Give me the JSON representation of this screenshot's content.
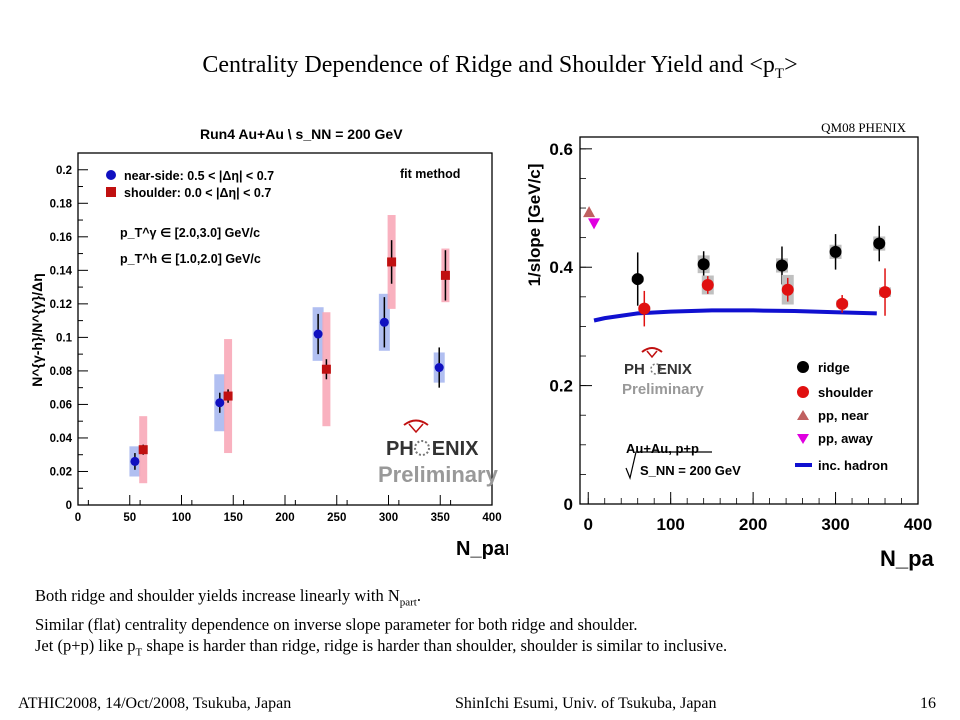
{
  "slide": {
    "title_main": "Centrality Dependence of Ridge and Shoulder Yield and <p",
    "title_sub": "T",
    "title_end": ">",
    "tag": "QM08 PHENIX",
    "notes": [
      {
        "pre": "Both ridge and shoulder yields increase linearly with N",
        "sub": "part",
        "post": "."
      },
      {
        "pre": "Similar (flat) centrality dependence on inverse slope parameter for both ridge and shoulder.",
        "sub": "",
        "post": ""
      },
      {
        "pre": "Jet (p+p) like p",
        "sub": "T",
        "post": " shape is harder than ridge, ridge is harder than shoulder, shoulder is similar to inclusive."
      }
    ],
    "footer_left": "ATHIC2008, 14/Oct/2008, Tsukuba, Japan",
    "footer_center": "ShinIchi Esumi, Univ. of Tsukuba, Japan",
    "page_number": "16"
  },
  "logo": {
    "text_ph": "PH",
    "text_enix": "ENIX",
    "text_prelim": "Preliminary"
  },
  "chart_data": [
    {
      "type": "scatter",
      "title": "Run4 Au+Au \\ s_NN = 200 GeV",
      "corner_label": "fit method",
      "xlabel": "N_part",
      "ylabel": "N^{γ-h}/N^{γ}/Δη",
      "xlim": [
        0,
        400
      ],
      "ylim": [
        0,
        0.21
      ],
      "xticks": [
        "0",
        "50",
        "100",
        "150",
        "200",
        "250",
        "300",
        "350",
        "400"
      ],
      "yticks": [
        "0",
        "0.02",
        "0.04",
        "0.06",
        "0.08",
        "0.1",
        "0.12",
        "0.14",
        "0.16",
        "0.18",
        "0.2"
      ],
      "cuts": [
        "p_T^γ ∈ [2.0,3.0] GeV/c",
        "p_T^h ∈ [1.0,2.0] GeV/c"
      ],
      "grid": false,
      "legend": "top-left",
      "series": [
        {
          "name": "near-side: 0.5 < |Δη| < 0.7",
          "color": "#1010c0",
          "marker": "circle",
          "x": [
            55,
            137,
            232,
            296,
            349
          ],
          "y": [
            0.026,
            0.061,
            0.102,
            0.109,
            0.082
          ],
          "stat": [
            0.005,
            0.006,
            0.012,
            0.015,
            0.012
          ],
          "sys": [
            0.009,
            0.017,
            0.016,
            0.017,
            0.009
          ]
        },
        {
          "name": "shoulder: 0.0 < |Δη| < 0.7",
          "color": "#c01010",
          "marker": "square",
          "x": [
            63,
            145,
            240,
            303,
            355
          ],
          "y": [
            0.033,
            0.065,
            0.081,
            0.145,
            0.137
          ],
          "stat": [
            0.003,
            0.004,
            0.006,
            0.013,
            0.015
          ],
          "sys": [
            0.02,
            0.034,
            0.034,
            0.028,
            0.016
          ]
        }
      ]
    },
    {
      "type": "scatter",
      "xlabel": "N_part",
      "ylabel": "1/slope [GeV/c]",
      "xlim": [
        -10,
        400
      ],
      "ylim": [
        0,
        0.62
      ],
      "xticks": [
        "0",
        "100",
        "200",
        "300",
        "400"
      ],
      "yticks": [
        "0",
        "0.2",
        "0.4",
        "0.6"
      ],
      "collision_label": "Au+Au, p+p",
      "energy_label": "S_NN = 200 GeV",
      "grid": false,
      "legend": "bottom-right",
      "series": [
        {
          "name": "ridge",
          "color": "#000000",
          "marker": "circle",
          "x": [
            60,
            140,
            235,
            300,
            353
          ],
          "y": [
            0.38,
            0.405,
            0.403,
            0.426,
            0.44
          ],
          "stat": [
            0.045,
            0.022,
            0.032,
            0.03,
            0.03
          ],
          "sys_color": "#c0c0c0",
          "sys": [
            0.005,
            0.015,
            0.012,
            0.012,
            0.012
          ]
        },
        {
          "name": "shoulder",
          "color": "#e01010",
          "marker": "circle",
          "x": [
            68,
            145,
            242,
            308,
            360
          ],
          "y": [
            0.33,
            0.37,
            0.362,
            0.338,
            0.358
          ],
          "stat": [
            0.03,
            0.015,
            0.02,
            0.015,
            0.04
          ],
          "sys_color": "#c0c0c0",
          "sys": [
            0.004,
            0.016,
            0.025,
            0.006,
            0.008
          ]
        },
        {
          "name": "pp, near",
          "color": "#c06060",
          "marker": "triangle-up",
          "x": [
            1
          ],
          "y": [
            0.493
          ]
        },
        {
          "name": "pp, away",
          "color": "#e000e0",
          "marker": "triangle-down",
          "x": [
            7
          ],
          "y": [
            0.474
          ]
        },
        {
          "name": "inc. hadron",
          "color": "#1010d0",
          "marker": "line",
          "x": [
            7,
            20,
            40,
            60,
            100,
            150,
            200,
            250,
            300,
            350
          ],
          "y": [
            0.31,
            0.314,
            0.318,
            0.322,
            0.325,
            0.327,
            0.327,
            0.326,
            0.324,
            0.322
          ]
        }
      ]
    }
  ]
}
